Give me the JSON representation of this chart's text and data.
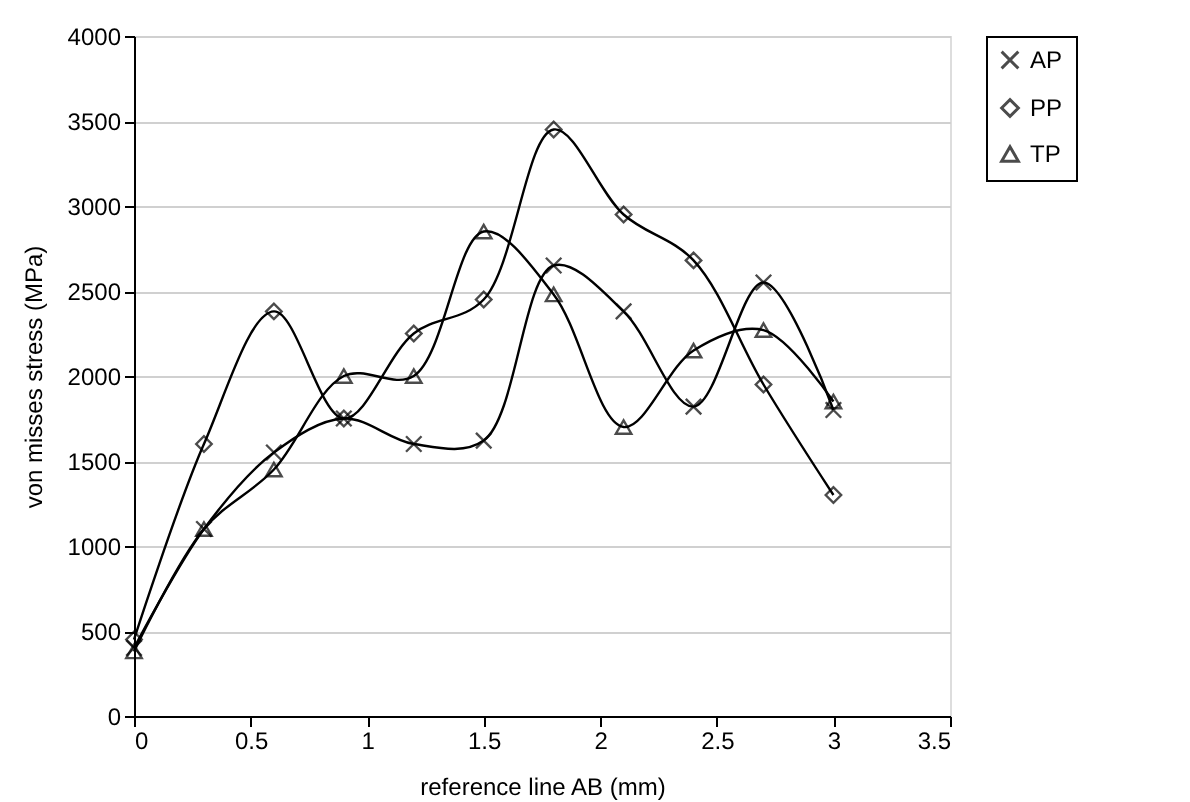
{
  "chart_data": {
    "type": "line",
    "xlabel": "reference line AB (mm)",
    "ylabel": "von misses stress (MPa)",
    "x": [
      0,
      0.3,
      0.6,
      0.9,
      1.2,
      1.5,
      1.8,
      2.1,
      2.4,
      2.7,
      3
    ],
    "series": [
      {
        "name": "AP",
        "color": "#000000",
        "marker": "cross",
        "values": [
          400,
          1100,
          1550,
          1750,
          1600,
          1620,
          2650,
          2380,
          1820,
          2550,
          1800
        ]
      },
      {
        "name": "PP",
        "color": "#000000",
        "marker": "diamond",
        "values": [
          450,
          1600,
          2380,
          1750,
          2250,
          2450,
          3450,
          2950,
          2680,
          1950,
          1300
        ]
      },
      {
        "name": "TP",
        "color": "#000000",
        "marker": "triangle",
        "values": [
          380,
          1100,
          1450,
          2000,
          2000,
          2850,
          2480,
          1700,
          2150,
          2270,
          1850
        ]
      }
    ],
    "xlim": [
      0,
      3.5
    ],
    "xticks": [
      0,
      0.5,
      1,
      1.5,
      2,
      2.5,
      3,
      3.5
    ],
    "ylim": [
      0,
      4000
    ],
    "yticks": [
      0,
      500,
      1000,
      1500,
      2000,
      2500,
      3000,
      3500,
      4000
    ],
    "grid": "y",
    "legend": "right",
    "line_style": "solid"
  }
}
